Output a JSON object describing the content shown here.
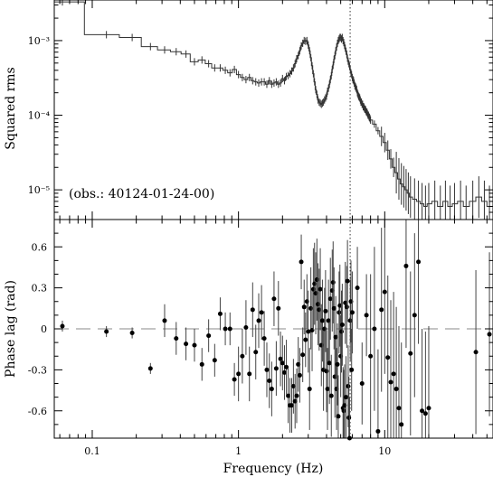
{
  "chart_data": [
    {
      "type": "line",
      "panel": "top",
      "ylabel": "Squared rms",
      "xscale": "log",
      "yscale": "log",
      "xlim": [
        0.055,
        55
      ],
      "ylim": [
        4e-06,
        0.0035
      ],
      "y_tick_labels": [
        "10⁻⁵",
        "10⁻⁴",
        "10⁻³"
      ],
      "y_tick_values": [
        1e-05,
        0.0001,
        0.001
      ],
      "annotation": "(obs.: 40124-01-24-00)",
      "vline_x": 5.8,
      "series": [
        {
          "x": [
            0.0625,
            0.125,
            0.1875,
            0.25,
            0.3125,
            0.375,
            0.4375,
            0.5,
            0.5625,
            0.625,
            0.6875,
            0.75,
            0.8125,
            0.875,
            0.9375,
            1.0,
            1.0625,
            1.125,
            1.1875,
            1.25,
            1.3125,
            1.375,
            1.4375,
            1.5,
            1.5625,
            1.625,
            1.6875,
            1.75,
            1.8125,
            1.875,
            1.9375,
            2.0,
            2.0625,
            2.125,
            2.1875,
            2.25,
            2.3125,
            2.375,
            2.4375,
            2.5,
            2.5625,
            2.625,
            2.6875,
            2.75,
            2.8125,
            2.875,
            2.9375,
            3.0,
            3.0625,
            3.125,
            3.1875,
            3.25,
            3.3125,
            3.375,
            3.4375,
            3.5,
            3.5625,
            3.625,
            3.6875,
            3.75,
            3.8125,
            3.875,
            3.9375,
            4.0,
            4.0625,
            4.125,
            4.1875,
            4.25,
            4.3125,
            4.375,
            4.4375,
            4.5,
            4.5625,
            4.625,
            4.6875,
            4.75,
            4.8125,
            4.875,
            4.9375,
            5.0,
            5.0625,
            5.125,
            5.1875,
            5.25,
            5.3125,
            5.375,
            5.4375,
            5.5,
            5.5625,
            5.625,
            5.6875,
            5.75,
            5.8125,
            5.875,
            5.9375,
            6.0,
            6.0625,
            6.125,
            6.1875,
            6.25,
            6.3125,
            6.375,
            6.4375,
            6.5,
            6.5625,
            6.625,
            6.6875,
            6.75,
            6.8125,
            6.875,
            6.9375,
            7.0,
            7.0625,
            7.125,
            7.1875,
            7.25,
            7.3125,
            7.375,
            7.4375,
            7.5,
            7.5625,
            7.625,
            7.6875,
            7.75,
            7.8125,
            7.875,
            7.9375,
            8.0,
            8.5,
            9.0,
            9.5,
            10.0,
            10.5,
            11.0,
            11.5,
            12.0,
            12.5,
            13.0,
            13.5,
            14.0,
            14.5,
            15.0,
            16.0,
            17.0,
            18.0,
            19.0,
            20.0,
            22.0,
            24.0,
            26.0,
            28.0,
            30.0,
            33.0,
            36.0,
            40.0,
            44.0,
            48.0,
            52.0
          ],
          "y": [
            0.0033,
            0.0012,
            0.0011,
            0.00083,
            0.00075,
            0.00071,
            0.00066,
            0.00052,
            0.00055,
            0.00049,
            0.00043,
            0.00043,
            0.0004,
            0.00037,
            0.00041,
            0.00035,
            0.00032,
            0.0003,
            0.00032,
            0.00029,
            0.00028,
            0.00027,
            0.00028,
            0.00028,
            0.00026,
            0.00029,
            0.00026,
            0.00027,
            0.00028,
            0.00026,
            0.00027,
            0.00031,
            0.00029,
            0.00033,
            0.00034,
            0.00036,
            0.00039,
            0.00043,
            0.00049,
            0.00057,
            0.00063,
            0.00073,
            0.00085,
            0.00092,
            0.001,
            0.00098,
            0.001,
            0.00087,
            0.00073,
            0.00059,
            0.00046,
            0.00036,
            0.00028,
            0.00022,
            0.00019,
            0.00016,
            0.00015,
            0.000145,
            0.00014,
            0.000145,
            0.00015,
            0.00016,
            0.00017,
            0.00018,
            0.00021,
            0.00023,
            0.00026,
            0.0003,
            0.00034,
            0.00041,
            0.00047,
            0.00056,
            0.00063,
            0.00073,
            0.00082,
            0.00092,
            0.001,
            0.00105,
            0.0011,
            0.0011,
            0.00105,
            0.0011,
            0.001,
            0.00094,
            0.00086,
            0.00079,
            0.00072,
            0.00066,
            0.00058,
            0.00053,
            0.00049,
            0.00045,
            0.00041,
            0.00037,
            0.00035,
            0.00032,
            0.0003,
            0.00029,
            0.00027,
            0.00025,
            0.00024,
            0.00023,
            0.00022,
            0.0002,
            0.00019,
            0.00018,
            0.000175,
            0.00017,
            0.00016,
            0.00015,
            0.00015,
            0.00014,
            0.00014,
            0.00013,
            0.00013,
            0.000125,
            0.00012,
            0.00012,
            0.000115,
            0.00011,
            0.00011,
            0.000105,
            0.0001,
            0.0001,
            9.5e-05,
            9.3e-05,
            9e-05,
            8.6e-05,
            7.6e-05,
            6.2e-05,
            5.2e-05,
            4.3e-05,
            3.4e-05,
            2.6e-05,
            2e-05,
            1.7e-05,
            1.4e-05,
            1.2e-05,
            1.1e-05,
            1e-05,
            9e-06,
            8e-06,
            7.5e-06,
            7e-06,
            6.5e-06,
            6e-06,
            6.5e-06,
            7e-06,
            6e-06,
            7e-06,
            6e-06,
            6.5e-06,
            7e-06,
            6e-06,
            7e-06,
            8e-06,
            7e-06,
            6e-06
          ]
        }
      ]
    },
    {
      "type": "scatter",
      "panel": "bottom",
      "xlabel": "Frequency (Hz)",
      "ylabel": "Phase lag (rad)",
      "xscale": "log",
      "xlim": [
        0.055,
        55
      ],
      "ylim": [
        -0.8,
        0.8
      ],
      "x_tick_labels": [
        "0.1",
        "1",
        "10"
      ],
      "x_tick_values": [
        0.1,
        1,
        10
      ],
      "y_tick_labels": [
        "-0.6",
        "-0.3",
        "0",
        "0.3",
        "0.6"
      ],
      "y_tick_values": [
        -0.6,
        -0.3,
        0,
        0.3,
        0.6
      ],
      "hline_y": 0,
      "vline_x": 5.8,
      "series": [
        {
          "x": [
            0.0625,
            0.125,
            0.1875,
            0.25,
            0.3125,
            0.375,
            0.4375,
            0.5,
            0.5625,
            0.625,
            0.6875,
            0.75,
            0.8125,
            0.875,
            0.9375,
            1.0,
            1.0625,
            1.125,
            1.1875,
            1.25,
            1.3125,
            1.375,
            1.4375,
            1.5,
            1.5625,
            1.625,
            1.6875,
            1.75,
            1.8125,
            1.875,
            1.9375,
            2.0,
            2.0625,
            2.125,
            2.1875,
            2.25,
            2.3125,
            2.375,
            2.4375,
            2.5,
            2.5625,
            2.625,
            2.6875,
            2.75,
            2.8125,
            2.875,
            2.9375,
            3.0,
            3.0625,
            3.125,
            3.1875,
            3.25,
            3.3125,
            3.375,
            3.4375,
            3.5,
            3.5625,
            3.625,
            3.6875,
            3.75,
            3.8125,
            3.875,
            3.9375,
            4.0,
            4.0625,
            4.125,
            4.1875,
            4.25,
            4.3125,
            4.375,
            4.4375,
            4.5,
            4.5625,
            4.625,
            4.6875,
            4.75,
            4.8125,
            4.875,
            4.9375,
            5.0,
            5.0625,
            5.125,
            5.1875,
            5.25,
            5.3125,
            5.375,
            5.4375,
            5.5,
            5.5625,
            5.625,
            5.6875,
            5.75,
            5.8125,
            5.875,
            5.9375,
            6.0,
            6.5,
            7.0,
            7.5,
            8.0,
            8.5,
            9.0,
            9.5,
            10.0,
            10.5,
            11.0,
            11.5,
            12.0,
            12.5,
            13.0,
            14.0,
            15.0,
            16.0,
            17.0,
            18.0,
            19.0,
            20.0,
            42.0,
            52.0
          ],
          "y": [
            0.02,
            -0.02,
            -0.03,
            -0.29,
            0.06,
            -0.07,
            -0.11,
            -0.12,
            -0.26,
            -0.05,
            -0.23,
            0.11,
            0.0,
            0.0,
            -0.37,
            -0.33,
            -0.2,
            0.01,
            -0.33,
            0.14,
            -0.17,
            0.06,
            0.12,
            -0.07,
            -0.3,
            -0.38,
            -0.44,
            0.22,
            -0.29,
            0.15,
            -0.22,
            -0.25,
            -0.32,
            -0.28,
            -0.49,
            -0.56,
            -0.56,
            -0.42,
            -0.53,
            -0.49,
            -0.26,
            -0.34,
            0.49,
            -0.19,
            0.16,
            -0.08,
            0.2,
            -0.02,
            -0.44,
            0.15,
            -0.01,
            0.29,
            0.33,
            0.26,
            0.36,
            0.18,
            0.14,
            0.29,
            -0.12,
            0.06,
            -0.3,
            0.0,
            0.13,
            -0.31,
            -0.44,
            0.06,
            -0.25,
            0.22,
            -0.49,
            0.28,
            0.34,
            0.15,
            -0.35,
            -0.06,
            -0.44,
            -0.26,
            -0.64,
            0.12,
            0.17,
            -0.2,
            -0.02,
            0.03,
            -0.58,
            -0.6,
            -0.56,
            0.19,
            -0.5,
            0.16,
            0.35,
            -0.42,
            -0.65,
            -0.8,
            0.06,
            0.2,
            -0.3,
            0.12,
            0.3,
            -0.4,
            0.1,
            -0.2,
            0.0,
            -0.75,
            0.14,
            0.27,
            -0.21,
            -0.39,
            -0.33,
            -0.44,
            -0.58,
            -0.7,
            0.46,
            -0.18,
            0.1,
            0.49,
            -0.6,
            -0.62,
            -0.58,
            -0.17,
            -0.04
          ]
        }
      ]
    }
  ]
}
